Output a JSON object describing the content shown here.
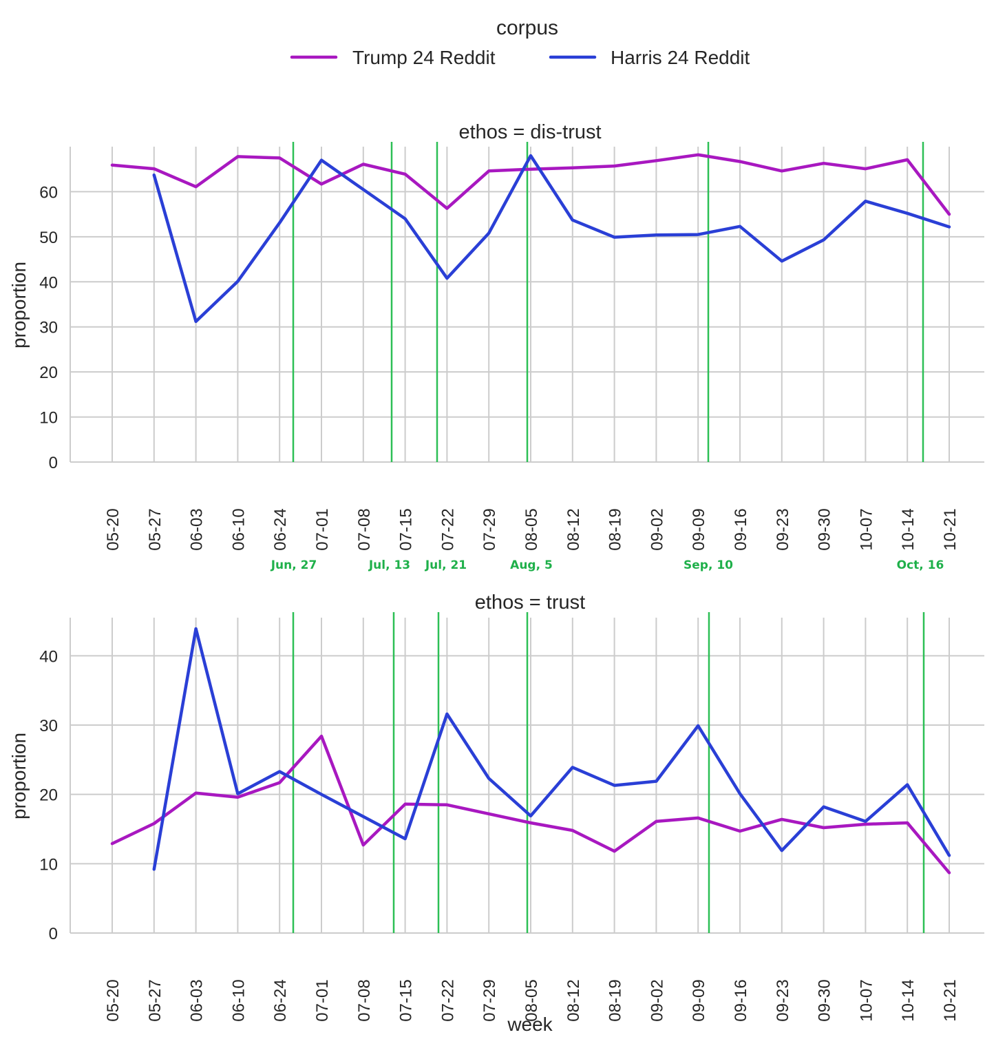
{
  "legend": {
    "title": "corpus",
    "entries": [
      {
        "label": "Trump 24 Reddit",
        "color": "#a818c0"
      },
      {
        "label": "Harris 24 Reddit",
        "color": "#2a3fd6"
      }
    ]
  },
  "events": [
    {
      "label": "Jun, 27"
    },
    {
      "label": "Jul, 13"
    },
    {
      "label": "Jul, 21"
    },
    {
      "label": "Aug, 5"
    },
    {
      "label": "Sep, 10"
    },
    {
      "label": "Oct, 16"
    }
  ],
  "colors": {
    "event": "#2cbf55",
    "grid": "#cccccc"
  },
  "chart_data": [
    {
      "type": "line",
      "title": "ethos = dis-trust",
      "xlabel": "",
      "ylabel": "proportion",
      "categories": [
        "05-20",
        "05-27",
        "06-03",
        "06-10",
        "06-24",
        "07-01",
        "07-08",
        "07-15",
        "07-22",
        "07-29",
        "08-05",
        "08-12",
        "08-19",
        "09-02",
        "09-09",
        "09-16",
        "09-23",
        "09-30",
        "10-07",
        "10-14",
        "10-21"
      ],
      "ylim": [
        0,
        70
      ],
      "yticks": [
        0,
        10,
        20,
        30,
        40,
        50,
        60
      ],
      "grid": true,
      "series": [
        {
          "name": "Trump 24 Reddit",
          "color": "#a818c0",
          "values": [
            65.9,
            65.1,
            61.1,
            67.8,
            67.5,
            61.7,
            66.1,
            63.9,
            56.3,
            64.6,
            65.0,
            65.3,
            65.7,
            66.9,
            68.2,
            66.7,
            64.6,
            66.3,
            65.1,
            67.1,
            55.0
          ]
        },
        {
          "name": "Harris 24 Reddit",
          "color": "#2a3fd6",
          "values": [
            null,
            63.7,
            31.2,
            40.1,
            53.1,
            67.0,
            60.5,
            54.0,
            40.8,
            50.8,
            68.0,
            53.7,
            49.9,
            50.4,
            50.5,
            52.3,
            44.6,
            49.3,
            57.9,
            55.2,
            52.2
          ]
        }
      ]
    },
    {
      "type": "line",
      "title": "ethos = trust",
      "xlabel": "week",
      "ylabel": "proportion",
      "categories": [
        "05-20",
        "05-27",
        "06-03",
        "06-10",
        "06-24",
        "07-01",
        "07-08",
        "07-15",
        "07-22",
        "07-29",
        "08-05",
        "08-12",
        "08-19",
        "09-02",
        "09-09",
        "09-16",
        "09-23",
        "09-30",
        "10-07",
        "10-14",
        "10-21"
      ],
      "ylim": [
        0,
        45.5
      ],
      "yticks": [
        0,
        10,
        20,
        30,
        40
      ],
      "grid": true,
      "series": [
        {
          "name": "Trump 24 Reddit",
          "color": "#a818c0",
          "values": [
            12.9,
            15.8,
            20.2,
            19.6,
            21.7,
            28.4,
            12.7,
            18.6,
            18.5,
            17.2,
            15.9,
            14.8,
            11.8,
            16.1,
            16.6,
            14.7,
            16.4,
            15.2,
            15.7,
            15.9,
            8.7
          ]
        },
        {
          "name": "Harris 24 Reddit",
          "color": "#2a3fd6",
          "values": [
            null,
            9.2,
            43.9,
            20.1,
            23.3,
            20.0,
            16.8,
            13.6,
            31.6,
            22.3,
            16.9,
            23.9,
            21.3,
            21.9,
            29.9,
            20.1,
            11.9,
            18.2,
            16.1,
            21.4,
            11.2
          ]
        }
      ]
    }
  ]
}
